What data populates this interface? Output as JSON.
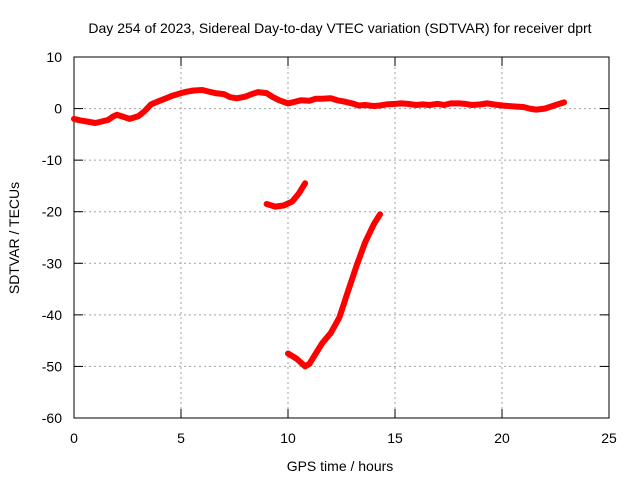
{
  "chart_data": {
    "type": "line",
    "title": "Day 254 of 2023, Sidereal Day-to-day VTEC variation (SDTVAR) for receiver dprt",
    "xlabel": "GPS time / hours",
    "ylabel": "SDTVAR / TECUs",
    "xlim": [
      0,
      25
    ],
    "ylim": [
      -60,
      10
    ],
    "xticks": [
      "0",
      "5",
      "10",
      "15",
      "20",
      "25"
    ],
    "yticks": [
      "10",
      "0",
      "-10",
      "-20",
      "-30",
      "-40",
      "-50",
      "-60"
    ],
    "grid": true,
    "series_color": "#ff0000",
    "series": [
      {
        "x": [
          0.0,
          0.3,
          0.6,
          1.0,
          1.3,
          1.6,
          1.8,
          2.0,
          2.3,
          2.6,
          3.0,
          3.3,
          3.6,
          4.0,
          4.3,
          4.6,
          5.0,
          5.3,
          5.6,
          6.0,
          6.3,
          6.6,
          7.0,
          7.3,
          7.6,
          8.0,
          8.3,
          8.6,
          9.0,
          9.3,
          9.6,
          10.0,
          10.3,
          10.6,
          11.0,
          11.3,
          11.6,
          12.0,
          12.3,
          12.6,
          13.0,
          13.3,
          13.6,
          14.0,
          14.3,
          14.6,
          15.0,
          15.3,
          15.6,
          16.0,
          16.3,
          16.6,
          17.0,
          17.3,
          17.6,
          18.0,
          18.3,
          18.6,
          19.0,
          19.3,
          19.6,
          20.0,
          20.3,
          20.6,
          21.0,
          21.3,
          21.6,
          22.0,
          22.3,
          22.6,
          22.9
        ],
        "y": [
          -2.0,
          -2.3,
          -2.5,
          -2.8,
          -2.5,
          -2.2,
          -1.6,
          -1.2,
          -1.6,
          -2.0,
          -1.5,
          -0.5,
          0.8,
          1.5,
          2.0,
          2.5,
          3.0,
          3.3,
          3.5,
          3.6,
          3.3,
          3.0,
          2.8,
          2.2,
          2.0,
          2.3,
          2.8,
          3.2,
          3.0,
          2.2,
          1.6,
          1.0,
          1.3,
          1.6,
          1.5,
          1.9,
          1.9,
          2.0,
          1.6,
          1.4,
          1.0,
          0.6,
          0.7,
          0.5,
          0.6,
          0.8,
          0.9,
          1.0,
          0.9,
          0.7,
          0.8,
          0.7,
          0.9,
          0.7,
          1.0,
          1.0,
          0.9,
          0.7,
          0.8,
          1.0,
          0.8,
          0.6,
          0.5,
          0.4,
          0.3,
          0.0,
          -0.2,
          0.0,
          0.4,
          0.8,
          1.2
        ]
      },
      {
        "x": [
          9.0,
          9.4,
          9.8,
          10.2,
          10.5,
          10.8
        ],
        "y": [
          -18.5,
          -19.0,
          -18.8,
          -18.0,
          -16.5,
          -14.5
        ]
      },
      {
        "x": [
          10.0,
          10.4,
          10.8,
          11.0,
          11.3,
          11.6,
          12.0,
          12.4,
          12.8,
          13.2,
          13.6,
          14.0,
          14.3
        ],
        "y": [
          -47.5,
          -48.5,
          -50.0,
          -49.5,
          -47.5,
          -45.5,
          -43.5,
          -40.5,
          -35.5,
          -30.5,
          -26.0,
          -22.5,
          -20.5
        ]
      }
    ]
  }
}
